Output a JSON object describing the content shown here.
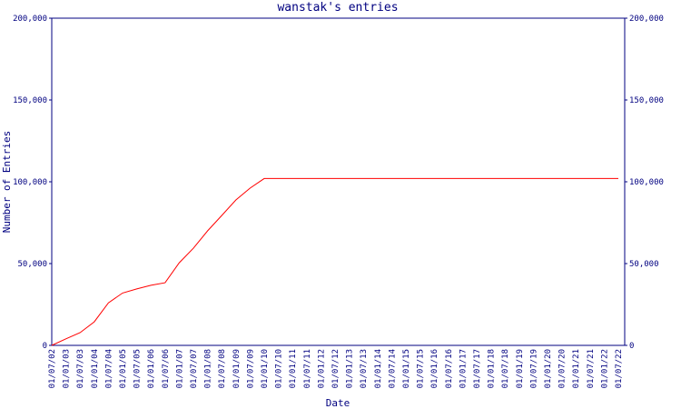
{
  "chart_data": {
    "type": "line",
    "title": "wanstak's entries",
    "xlabel": "Date",
    "ylabel": "Number of Entries",
    "categories": [
      "01/07/02",
      "01/01/03",
      "01/07/03",
      "01/01/04",
      "01/07/04",
      "01/01/05",
      "01/07/05",
      "01/01/06",
      "01/07/06",
      "01/01/07",
      "01/07/07",
      "01/01/08",
      "01/07/08",
      "01/01/09",
      "01/07/09",
      "01/01/10",
      "01/07/10",
      "01/01/11",
      "01/07/11",
      "01/01/12",
      "01/07/12",
      "01/01/13",
      "01/07/13",
      "01/01/14",
      "01/07/14",
      "01/01/15",
      "01/07/15",
      "01/01/16",
      "01/07/16",
      "01/01/17",
      "01/07/17",
      "01/01/18",
      "01/07/18",
      "01/01/19",
      "01/07/19",
      "01/01/20",
      "01/07/20",
      "01/01/21",
      "01/07/21",
      "01/01/22",
      "01/07/22"
    ],
    "values": [
      0,
      4000,
      7800,
      14400,
      26000,
      32000,
      34500,
      36700,
      38300,
      50500,
      59400,
      70000,
      79400,
      88900,
      96100,
      102000,
      102000,
      102000,
      102000,
      102000,
      102000,
      102000,
      102000,
      102000,
      102000,
      102000,
      102000,
      102000,
      102000,
      102000,
      102000,
      102000,
      102000,
      102000,
      102000,
      102000,
      102000,
      102000,
      102000,
      102000,
      102000
    ],
    "color": "#ff0000",
    "axis_color": "#000080",
    "ylim": [
      0,
      200000
    ],
    "yticks": [
      0,
      {
        "value": 50000,
        "label": "50,000"
      },
      {
        "value": 100000,
        "label": "100,000"
      },
      {
        "value": 150000,
        "label": "150,000"
      },
      {
        "value": 200000,
        "label": "200,000"
      }
    ],
    "y2lim": [
      0,
      200000
    ],
    "y2ticks": [
      0,
      {
        "value": 50000,
        "label": "50,000"
      },
      {
        "value": 100000,
        "label": "100,000"
      },
      {
        "value": 150000,
        "label": "150,000"
      },
      {
        "value": 200000,
        "label": "200,000"
      }
    ]
  }
}
